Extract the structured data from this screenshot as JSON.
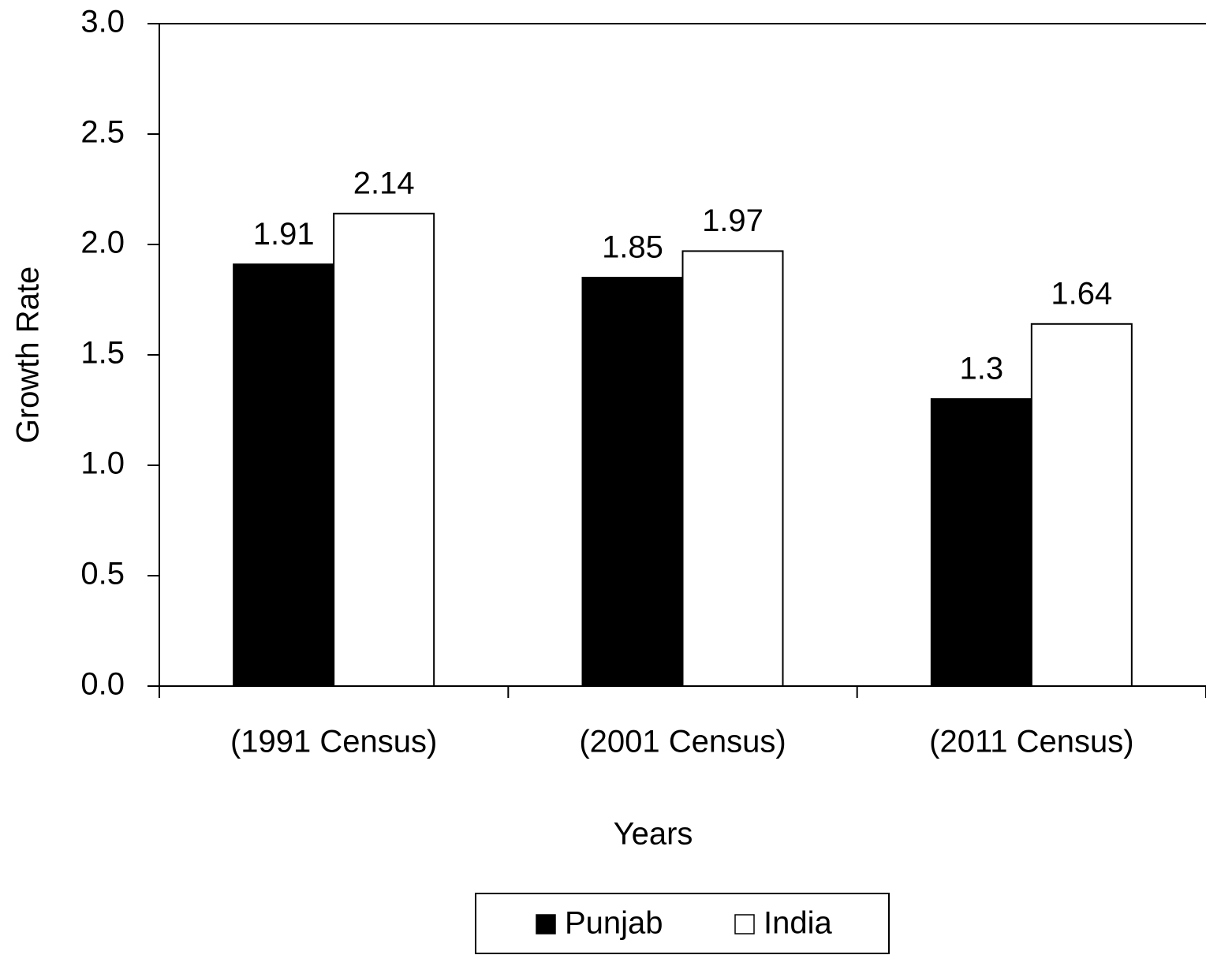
{
  "chart_data": {
    "type": "bar",
    "x_label": "Years",
    "y_label": "Growth Rate",
    "categories": [
      "(1991 Census)",
      "(2001 Census)",
      "(2011 Census)"
    ],
    "series": [
      {
        "name": "Punjab",
        "color": "#000000",
        "values": [
          1.91,
          1.85,
          1.3
        ]
      },
      {
        "name": "India",
        "color": "#ffffff",
        "values": [
          2.14,
          1.97,
          1.64
        ]
      }
    ],
    "ylim": [
      0,
      3
    ],
    "yticks": [
      {
        "value": 0,
        "label": "0.0"
      },
      {
        "value": 0.5,
        "label": "0.5"
      },
      {
        "value": 1,
        "label": "1.0"
      },
      {
        "value": 1.5,
        "label": "1.5"
      },
      {
        "value": 2,
        "label": "2.0"
      },
      {
        "value": 2.5,
        "label": "2.5"
      },
      {
        "value": 3,
        "label": "3.0"
      }
    ],
    "grid": false,
    "legend": "bottom"
  }
}
